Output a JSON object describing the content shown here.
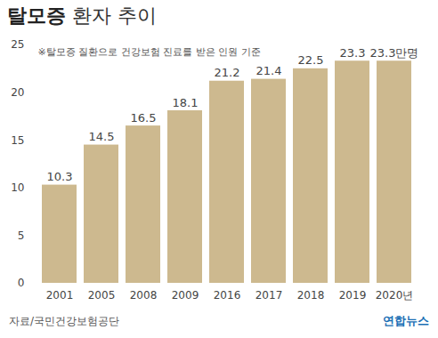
{
  "chart_data": {
    "type": "bar",
    "title": "탈모증 환자 추이",
    "note": "※탈모증 질환으로 건강보험 진료를 받은 인원 기준",
    "source": "자료/국민건강보험공단",
    "credit": "연합뉴스",
    "categories": [
      "2001",
      "2005",
      "2008",
      "2009",
      "2016",
      "2017",
      "2018",
      "2019",
      "2020년"
    ],
    "values": [
      10.3,
      14.5,
      16.5,
      18.1,
      21.2,
      21.4,
      22.5,
      23.3,
      23.3
    ],
    "value_labels": [
      "10.3",
      "14.5",
      "16.5",
      "18.1",
      "21.2",
      "21.4",
      "22.5",
      "23.3",
      "23.3만명"
    ],
    "data_labels": true,
    "color": "#cdb98f",
    "ylim": [
      0,
      25
    ],
    "yticks": [
      0,
      5,
      10,
      15,
      20,
      25
    ],
    "grid": false
  }
}
